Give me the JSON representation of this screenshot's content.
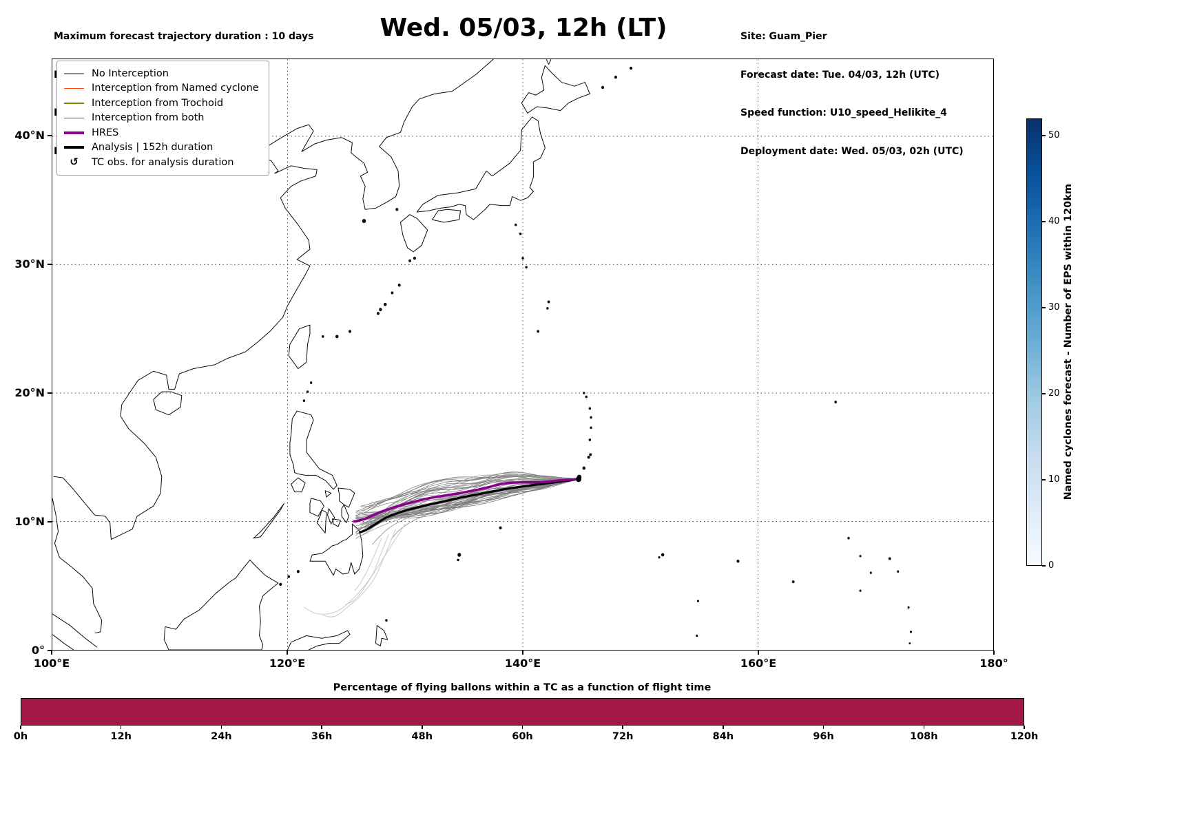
{
  "header": {
    "left_lines": [
      "Maximum forecast trajectory duration : 10 days",
      "Intercept distance: 300km",
      "Intercept RW2 (EPS):  30km/h2",
      "Intercept RW2 (HRES): 30km/h2"
    ],
    "title": "Wed. 05/03, 12h (LT)",
    "right_lines": [
      "Site: Guam_Pier",
      "Forecast date: Tue. 04/03, 12h (UTC)",
      "Speed function: U10_speed_Helikite_4",
      "Deployment date: Wed. 05/03, 02h (UTC)"
    ]
  },
  "map": {
    "x_ticks": [
      {
        "lon": 100,
        "label": "100°E"
      },
      {
        "lon": 120,
        "label": "120°E"
      },
      {
        "lon": 140,
        "label": "140°E"
      },
      {
        "lon": 160,
        "label": "160°E"
      },
      {
        "lon": 180,
        "label": "180°"
      }
    ],
    "y_ticks": [
      {
        "lat": 0,
        "label": "0°"
      },
      {
        "lat": 10,
        "label": "10°N"
      },
      {
        "lat": 20,
        "label": "20°N"
      },
      {
        "lat": 30,
        "label": "30°N"
      },
      {
        "lat": 40,
        "label": "40°N"
      }
    ],
    "grid_lons": [
      120,
      140,
      160
    ],
    "grid_lats": [
      10,
      20,
      30,
      40
    ],
    "legend": {
      "items": [
        {
          "label": "No Interception",
          "type": "line",
          "color": "#888888",
          "thickness": 1.5
        },
        {
          "label": "Interception from Named cyclone",
          "type": "line",
          "color": "#ff4500",
          "thickness": 1.5
        },
        {
          "label": "Interception from Trochoid",
          "type": "line",
          "color": "#808000",
          "thickness": 1.5
        },
        {
          "label": "Interception from both",
          "type": "line",
          "color": "#008000",
          "thickness": 1.5
        },
        {
          "label": "HRES",
          "type": "line",
          "color": "#8b008b",
          "thickness": 4
        },
        {
          "label": "Analysis | 152h duration",
          "type": "line",
          "color": "#000000",
          "thickness": 4
        },
        {
          "label": "TC obs. for analysis duration",
          "type": "symbol",
          "symbol": "↺",
          "color": "#000000"
        }
      ]
    }
  },
  "colorbar": {
    "label": "Named cyclones forecast - Number of EPS within 120km",
    "ticks": [
      0,
      10,
      20,
      30,
      40,
      50
    ],
    "vmin": 0,
    "vmax": 52,
    "colors_bottom_to_top": [
      "#f7fbff",
      "#deebf7",
      "#c6dbef",
      "#9ecae1",
      "#6baed6",
      "#4292c6",
      "#2171b5",
      "#08519c",
      "#08306b"
    ]
  },
  "chart_data": [
    {
      "type": "line",
      "title": "Wed. 05/03, 12h (LT)",
      "map_extent": {
        "lon": [
          100,
          180
        ],
        "lat": [
          0,
          46
        ]
      },
      "start_point": {
        "name": "Guam_Pier",
        "lon": 144.75,
        "lat": 13.3
      },
      "hres_color": "#8b008b",
      "analysis_color": "#000000",
      "ensemble_color": "#787878",
      "faded_color": "#cccccc",
      "analysis_duration_h": 152,
      "hres": [
        [
          144.75,
          13.3
        ],
        [
          143.2,
          13.2
        ],
        [
          141.6,
          13.05
        ],
        [
          140.0,
          13.05
        ],
        [
          138.4,
          12.95
        ],
        [
          136.8,
          12.6
        ],
        [
          135.2,
          12.3
        ],
        [
          133.6,
          12.05
        ],
        [
          132.0,
          11.8
        ],
        [
          130.4,
          11.45
        ],
        [
          128.9,
          11.05
        ],
        [
          127.7,
          10.65
        ],
        [
          126.7,
          10.25
        ],
        [
          126.0,
          10.05
        ],
        [
          125.65,
          10.0
        ]
      ],
      "analysis": [
        [
          144.75,
          13.3
        ],
        [
          143.2,
          13.1
        ],
        [
          141.5,
          12.9
        ],
        [
          139.8,
          12.7
        ],
        [
          138.1,
          12.45
        ],
        [
          136.4,
          12.15
        ],
        [
          134.7,
          11.85
        ],
        [
          133.0,
          11.5
        ],
        [
          131.3,
          11.15
        ],
        [
          129.7,
          10.75
        ],
        [
          128.4,
          10.3
        ],
        [
          127.4,
          9.75
        ],
        [
          126.7,
          9.35
        ],
        [
          126.15,
          9.15
        ]
      ],
      "ensemble_base": [
        [
          144.75,
          13.3
        ],
        [
          143.2,
          13.15
        ],
        [
          141.5,
          13.0
        ],
        [
          139.8,
          12.95
        ],
        [
          138.2,
          12.8
        ],
        [
          136.6,
          12.5
        ],
        [
          135.0,
          12.15
        ],
        [
          133.4,
          11.85
        ],
        [
          131.8,
          11.55
        ],
        [
          130.2,
          11.2
        ],
        [
          128.8,
          10.85
        ],
        [
          127.6,
          10.45
        ],
        [
          126.6,
          10.1
        ],
        [
          125.8,
          9.95
        ]
      ],
      "ensemble": {
        "count": 48,
        "seed": 11,
        "lat_spread": 1.15,
        "end_spread": 1.3
      },
      "south_members": [
        [
          [
            144.75,
            13.3
          ],
          [
            142.0,
            12.9
          ],
          [
            139.0,
            12.4
          ],
          [
            136.0,
            11.8
          ],
          [
            133.0,
            11.2
          ],
          [
            130.5,
            10.4
          ],
          [
            128.8,
            9.6
          ],
          [
            127.8,
            8.8
          ],
          [
            127.2,
            8.2
          ]
        ],
        [
          [
            144.75,
            13.3
          ],
          [
            142.0,
            12.8
          ],
          [
            139.0,
            12.3
          ],
          [
            136.0,
            11.6
          ],
          [
            133.0,
            10.9
          ],
          [
            131.0,
            10.2
          ],
          [
            129.6,
            9.4
          ],
          [
            128.8,
            8.6
          ]
        ]
      ],
      "faded_excursions": [
        [
          [
            130.0,
            9.8
          ],
          [
            128.6,
            7.8
          ],
          [
            127.2,
            5.8
          ],
          [
            125.8,
            4.2
          ],
          [
            124.2,
            3.0
          ],
          [
            122.6,
            2.8
          ],
          [
            121.4,
            3.3
          ]
        ],
        [
          [
            129.2,
            9.4
          ],
          [
            128.2,
            7.2
          ],
          [
            127.4,
            5.6
          ],
          [
            126.4,
            4.4
          ],
          [
            125.2,
            3.4
          ],
          [
            124.0,
            2.6
          ],
          [
            123.0,
            2.7
          ]
        ],
        [
          [
            128.6,
            9.0
          ],
          [
            127.9,
            7.4
          ],
          [
            127.3,
            6.0
          ],
          [
            126.5,
            4.8
          ],
          [
            125.7,
            3.9
          ],
          [
            124.9,
            3.5
          ]
        ],
        [
          [
            128.0,
            8.7
          ],
          [
            127.4,
            7.4
          ],
          [
            126.8,
            6.2
          ],
          [
            126.2,
            5.2
          ],
          [
            125.7,
            4.6
          ]
        ]
      ]
    },
    {
      "type": "bar",
      "title": "Percentage of flying ballons within a TC as a function of flight time",
      "x_hours": [
        0,
        12,
        24,
        36,
        48,
        60,
        72,
        84,
        96,
        108,
        120
      ],
      "x_tick_labels": [
        "0h",
        "12h",
        "24h",
        "36h",
        "48h",
        "60h",
        "72h",
        "84h",
        "96h",
        "108h",
        "120h"
      ],
      "values_percent": [
        100,
        100,
        100,
        100,
        100,
        100,
        100,
        100,
        100,
        100,
        100
      ],
      "bar_color": "#a21648",
      "ylim": [
        0,
        100
      ]
    }
  ]
}
